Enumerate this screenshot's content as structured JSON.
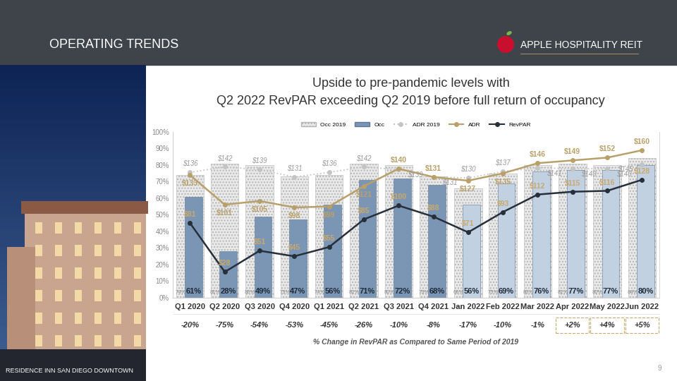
{
  "header": {
    "title": "OPERATING TRENDS",
    "logo": "APPLE HOSPITALITY REIT"
  },
  "photo_caption": "RESIDENCE INN SAN DIEGO DOWNTOWN",
  "page_number": 9,
  "chart_data": {
    "type": "bar",
    "title": "Upside to pre-pandemic levels with\nQ2 2022 RevPAR exceeding Q2 2019 before full return of occupancy",
    "categories": [
      "Q1 2020",
      "Q2 2020",
      "Q3 2020",
      "Q4 2020",
      "Q1 2021",
      "Q2 2021",
      "Q3 2021",
      "Q4 2021",
      "Jan 2022",
      "Feb 2022",
      "Mar 2022",
      "Apr 2022",
      "May 2022",
      "Jun 2022"
    ],
    "series": [
      {
        "name": "Occ 2019",
        "type": "bar",
        "color": "#e9e9e9",
        "values": [
          74,
          81,
          80,
          73,
          74,
          81,
          80,
          73,
          66,
          75,
          80,
          81,
          80,
          84
        ],
        "value_labels": [
          "74%",
          "81%",
          "80%",
          "73%",
          "74%",
          "81%",
          "80%",
          "73%",
          "66%",
          "75%",
          "80%",
          "81%",
          "80%",
          "84%"
        ]
      },
      {
        "name": "Occ",
        "type": "bar",
        "colors": [
          "#7b96b4",
          "#7b96b4",
          "#7b96b4",
          "#7b96b4",
          "#7b96b4",
          "#7b96b4",
          "#7b96b4",
          "#7b96b4",
          "#c2d1e1",
          "#c2d1e1",
          "#c2d1e1",
          "#c2d1e1",
          "#c2d1e1",
          "#c2d1e1"
        ],
        "values": [
          61,
          28,
          49,
          47,
          56,
          71,
          72,
          68,
          56,
          69,
          76,
          77,
          77,
          80
        ],
        "value_labels": [
          "61%",
          "28%",
          "49%",
          "47%",
          "56%",
          "71%",
          "72%",
          "68%",
          "56%",
          "69%",
          "76%",
          "77%",
          "77%",
          "80%"
        ]
      },
      {
        "name": "ADR 2019",
        "type": "line",
        "axis": "y2",
        "color": "#c4c4c4",
        "line_style": "dotted",
        "marker": "circle",
        "values": [
          136,
          142,
          139,
          131,
          136,
          142,
          139,
          131,
          130,
          137,
          141,
          140,
          140,
          145
        ],
        "value_labels": [
          "$136",
          "$142",
          "$139",
          "$131",
          "$136",
          "$142",
          "$139",
          "$131",
          "$130",
          "$137",
          "$141",
          "$140",
          "$140",
          "$145"
        ]
      },
      {
        "name": "ADR",
        "type": "line",
        "axis": "y2",
        "color": "#b9a06a",
        "line_style": "solid",
        "marker": "circle",
        "values": [
          133,
          101,
          105,
          98,
          99,
          121,
          140,
          131,
          127,
          135,
          146,
          149,
          152,
          160
        ],
        "value_labels": [
          "$133",
          "$101",
          "$105",
          "$98",
          "$99",
          "$121",
          "$140",
          "$131",
          "$127",
          "$135",
          "$146",
          "$149",
          "$152",
          "$160"
        ]
      },
      {
        "name": "RevPAR",
        "type": "line",
        "axis": "y2",
        "color": "#27303a",
        "line_style": "solid",
        "marker": "circle",
        "values": [
          81,
          28,
          51,
          45,
          55,
          85,
          100,
          88,
          71,
          93,
          112,
          115,
          116,
          128
        ],
        "value_labels": [
          "$81",
          "$28",
          "$51",
          "$45",
          "$55",
          "$85",
          "$100",
          "$88",
          "$71",
          "$93",
          "$112",
          "$115",
          "$116",
          "$128"
        ]
      }
    ],
    "ylim": [
      0,
      100
    ],
    "yticks": [
      {
        "value": 0,
        "label": "0%"
      },
      {
        "value": 10,
        "label": "10%"
      },
      {
        "value": 20,
        "label": "20%"
      },
      {
        "value": 30,
        "label": "30%"
      },
      {
        "value": 40,
        "label": "40%"
      },
      {
        "value": 50,
        "label": "50%"
      },
      {
        "value": 60,
        "label": "60%"
      },
      {
        "value": 70,
        "label": "70%"
      },
      {
        "value": 80,
        "label": "80%"
      },
      {
        "value": 90,
        "label": "90%"
      },
      {
        "value": 100,
        "label": "100%"
      }
    ],
    "y2lim": [
      0,
      180
    ],
    "y2ticks": [],
    "legend": "upper center",
    "grid": false,
    "data_labels": true,
    "revpar_change": {
      "title": "% Change in RevPAR as Compared to Same Period of 2019",
      "values": [
        -20,
        -75,
        -54,
        -53,
        -45,
        -26,
        -10,
        -8,
        -17,
        -10,
        -1,
        2,
        4,
        5
      ],
      "value_labels": [
        "-20%",
        "-75%",
        "-54%",
        "-53%",
        "-45%",
        "-26%",
        "-10%",
        "-8%",
        "-17%",
        "-10%",
        "-1%",
        "+2%",
        "+4%",
        "+5%"
      ]
    }
  }
}
